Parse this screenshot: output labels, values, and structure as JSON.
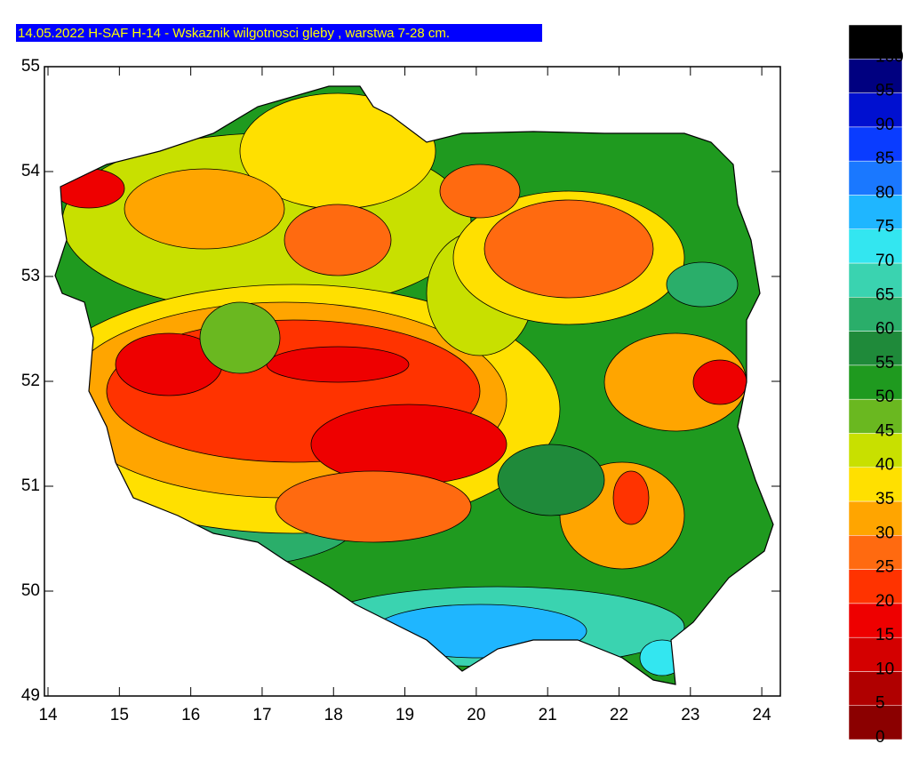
{
  "chart_data": {
    "type": "contour",
    "title": "14.05.2022 H-SAF H-14 - Wskaznik wilgotnosci gleby , warstwa 7-28 cm.",
    "xlim": [
      13.95,
      24.26
    ],
    "xticks": [
      14,
      15,
      16,
      17,
      18,
      19,
      20,
      21,
      22,
      23,
      24
    ],
    "ylim": [
      49,
      55
    ],
    "yticks": [
      49,
      50,
      51,
      52,
      53,
      54,
      55
    ],
    "colorbar": {
      "range": [
        0,
        105
      ],
      "labels": [
        0,
        5,
        10,
        15,
        20,
        25,
        30,
        35,
        40,
        45,
        50,
        55,
        60,
        65,
        70,
        75,
        80,
        85,
        90,
        95,
        100
      ],
      "colors": [
        "#8b0000",
        "#b00000",
        "#d40000",
        "#ee0000",
        "#ff3300",
        "#ff6a10",
        "#ffa500",
        "#ffe000",
        "#c8e000",
        "#6ab820",
        "#1f9a1f",
        "#1f8a3a",
        "#2aae6a",
        "#3ad3b0",
        "#33e6f0",
        "#1fb6ff",
        "#1a78ff",
        "#0a3cff",
        "#0010d0",
        "#000080",
        "#000000"
      ]
    }
  }
}
